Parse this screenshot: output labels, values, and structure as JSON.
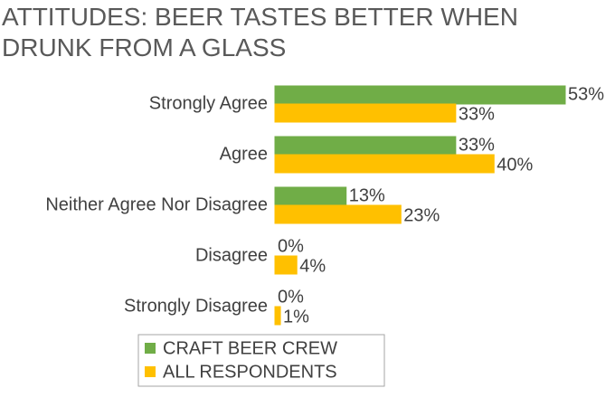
{
  "chart_data": {
    "type": "hbar",
    "title": "ATTITUDES: BEER TASTES BETTER WHEN DRUNK FROM A GLASS",
    "categories": [
      "Strongly Agree",
      "Agree",
      "Neither Agree Nor Disagree",
      "Disagree",
      "Strongly Disagree"
    ],
    "series": [
      {
        "name": "CRAFT BEER CREW",
        "color": "#70ad47",
        "values": [
          53,
          33,
          13,
          0,
          0
        ],
        "value_labels": [
          "53%",
          "33%",
          "13%",
          "0%",
          "0%"
        ],
        "value_label_colors": [
          "#1a1aa6",
          "#e00000",
          "#e00000",
          "#e00000",
          "#404040"
        ]
      },
      {
        "name": "ALL RESPONDENTS",
        "color": "#ffc000",
        "values": [
          33,
          40,
          23,
          4,
          1
        ],
        "value_labels": [
          "33%",
          "40%",
          "23%",
          "4%",
          "1%"
        ],
        "value_label_colors": [
          "#404040",
          "#404040",
          "#404040",
          "#404040",
          "#404040"
        ]
      }
    ],
    "legend": "bottom"
  }
}
